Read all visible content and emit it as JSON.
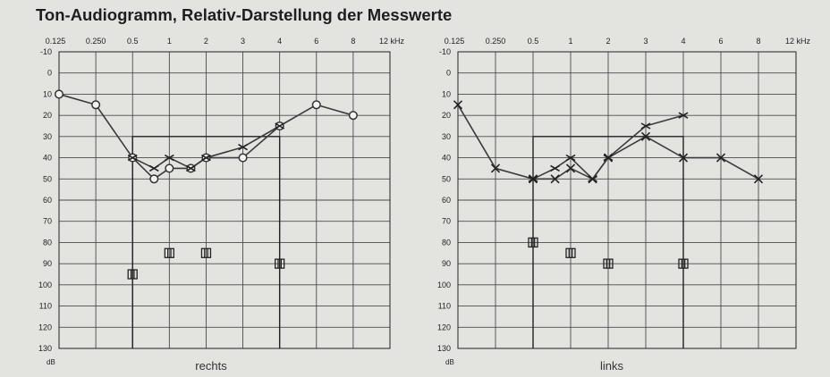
{
  "title": "Ton-Audiogramm, Relativ-Darstellung der Messwerte",
  "chart_data": [
    {
      "type": "line",
      "panel_label": "rechts",
      "x_ticks": [
        "0.125",
        "0.250",
        "0.5",
        "1",
        "2",
        "3",
        "4",
        "6",
        "8",
        "12 kHz"
      ],
      "y_ticks": [
        "-10",
        "0",
        "10",
        "20",
        "30",
        "40",
        "50",
        "60",
        "70",
        "80",
        "90",
        "100",
        "110",
        "120",
        "130"
      ],
      "y_unit": "dB",
      "ylim": [
        -10,
        130
      ],
      "y_inverted": true,
      "series": [
        {
          "marker": "circle",
          "points": [
            {
              "x": 0.125,
              "y": 10
            },
            {
              "x": 0.25,
              "y": 15
            },
            {
              "x": 0.5,
              "y": 40
            },
            {
              "x": 0.75,
              "y": 50
            },
            {
              "x": 1,
              "y": 45
            },
            {
              "x": 1.5,
              "y": 45
            },
            {
              "x": 2,
              "y": 40
            },
            {
              "x": 3,
              "y": 40
            },
            {
              "x": 4,
              "y": 25
            },
            {
              "x": 6,
              "y": 15
            },
            {
              "x": 8,
              "y": 20
            }
          ]
        },
        {
          "marker": "arrow",
          "points": [
            {
              "x": 0.5,
              "y": 40
            },
            {
              "x": 0.75,
              "y": 45
            },
            {
              "x": 1,
              "y": 40
            },
            {
              "x": 1.5,
              "y": 45
            },
            {
              "x": 2,
              "y": 40
            },
            {
              "x": 3,
              "y": 35
            },
            {
              "x": 4,
              "y": 25
            }
          ]
        }
      ],
      "masking_markers": [
        {
          "x": 0.5,
          "y": 95
        },
        {
          "x": 1,
          "y": 85
        },
        {
          "x": 2,
          "y": 85
        },
        {
          "x": 4,
          "y": 90
        }
      ],
      "masking_box": {
        "x_from": 0.5,
        "x_to": 4,
        "y_top": 30
      }
    },
    {
      "type": "line",
      "panel_label": "links",
      "x_ticks": [
        "0.125",
        "0.250",
        "0.5",
        "1",
        "2",
        "3",
        "4",
        "6",
        "8",
        "12 kHz"
      ],
      "y_ticks": [
        "-10",
        "0",
        "10",
        "20",
        "30",
        "40",
        "50",
        "60",
        "70",
        "80",
        "90",
        "100",
        "110",
        "120",
        "130"
      ],
      "y_unit": "dB",
      "ylim": [
        -10,
        130
      ],
      "y_inverted": true,
      "series": [
        {
          "marker": "cross",
          "points": [
            {
              "x": 0.125,
              "y": 15
            },
            {
              "x": 0.25,
              "y": 45
            },
            {
              "x": 0.5,
              "y": 50
            },
            {
              "x": 0.75,
              "y": 50
            },
            {
              "x": 1,
              "y": 45
            },
            {
              "x": 1.5,
              "y": 50
            },
            {
              "x": 2,
              "y": 40
            },
            {
              "x": 3,
              "y": 30
            },
            {
              "x": 4,
              "y": 40
            },
            {
              "x": 6,
              "y": 40
            },
            {
              "x": 8,
              "y": 50
            }
          ]
        },
        {
          "marker": "arrow",
          "points": [
            {
              "x": 0.5,
              "y": 50
            },
            {
              "x": 0.75,
              "y": 45
            },
            {
              "x": 1,
              "y": 40
            },
            {
              "x": 1.5,
              "y": 50
            },
            {
              "x": 2,
              "y": 40
            },
            {
              "x": 3,
              "y": 25
            },
            {
              "x": 4,
              "y": 20
            }
          ]
        }
      ],
      "masking_markers": [
        {
          "x": 0.5,
          "y": 80
        },
        {
          "x": 1,
          "y": 85
        },
        {
          "x": 2,
          "y": 90
        },
        {
          "x": 4,
          "y": 90
        }
      ],
      "masking_box": {
        "x_from": 0.5,
        "x_to": 4,
        "y_top": 30
      }
    }
  ]
}
